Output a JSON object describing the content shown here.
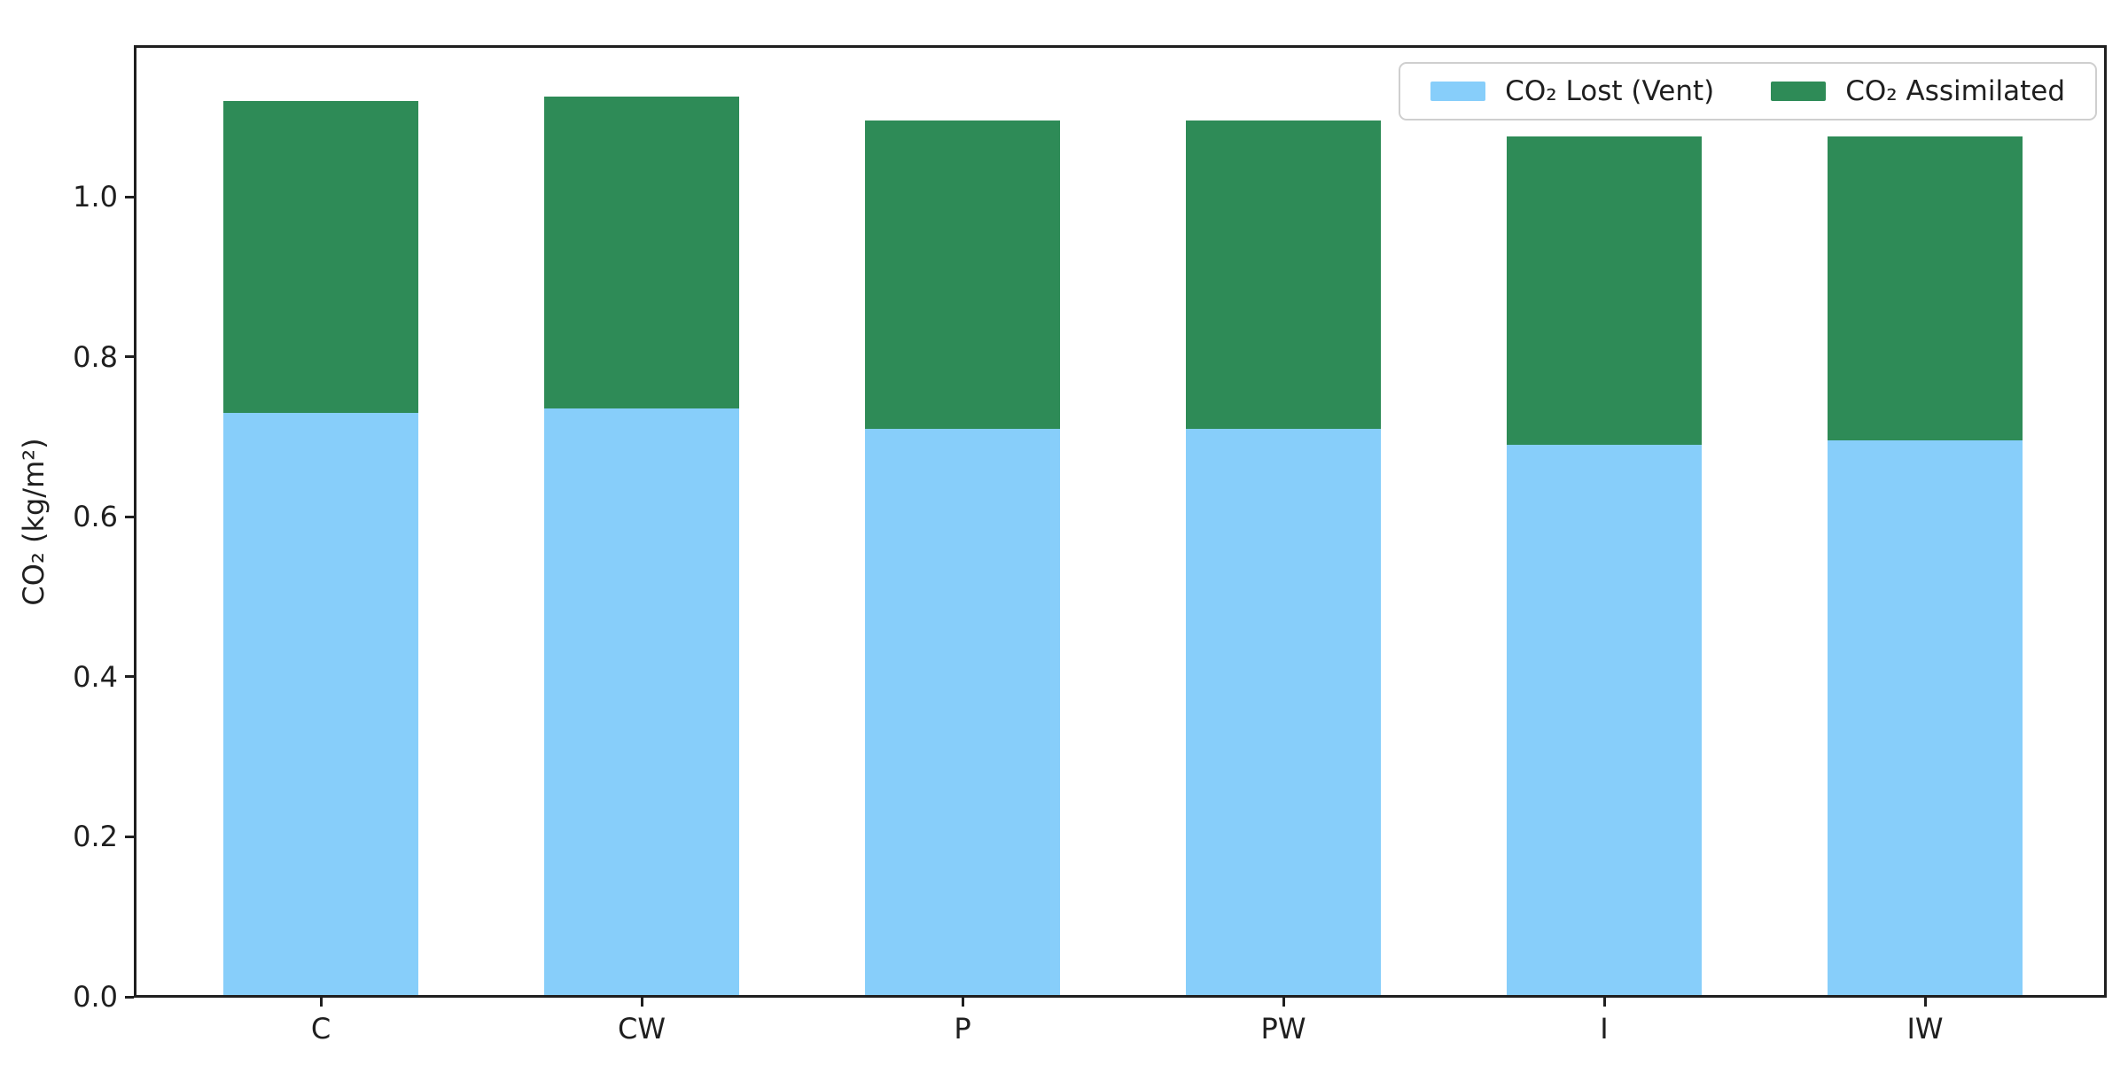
{
  "chart_data": {
    "type": "bar",
    "stacked": true,
    "categories": [
      "C",
      "CW",
      "P",
      "PW",
      "I",
      "IW"
    ],
    "series": [
      {
        "name": "CO₂ Lost (Vent)",
        "color": "#87CEFA",
        "values": [
          0.73,
          0.735,
          0.71,
          0.71,
          0.69,
          0.695
        ]
      },
      {
        "name": "CO₂ Assimilated",
        "color": "#2E8B57",
        "values": [
          0.39,
          0.39,
          0.385,
          0.385,
          0.385,
          0.38
        ]
      }
    ],
    "title": "",
    "xlabel": "",
    "ylabel": "CO₂ (kg/m²)",
    "ylim": [
      0,
      1.19
    ],
    "yticks": [
      0.0,
      0.2,
      0.4,
      0.6,
      0.8,
      1.0
    ],
    "ytick_labels": [
      "0.0",
      "0.2",
      "0.4",
      "0.6",
      "0.8",
      "1.0"
    ],
    "grid": false,
    "legend_position": "upper right",
    "background": "#ffffff",
    "spine_color": "#1f1f1f"
  }
}
